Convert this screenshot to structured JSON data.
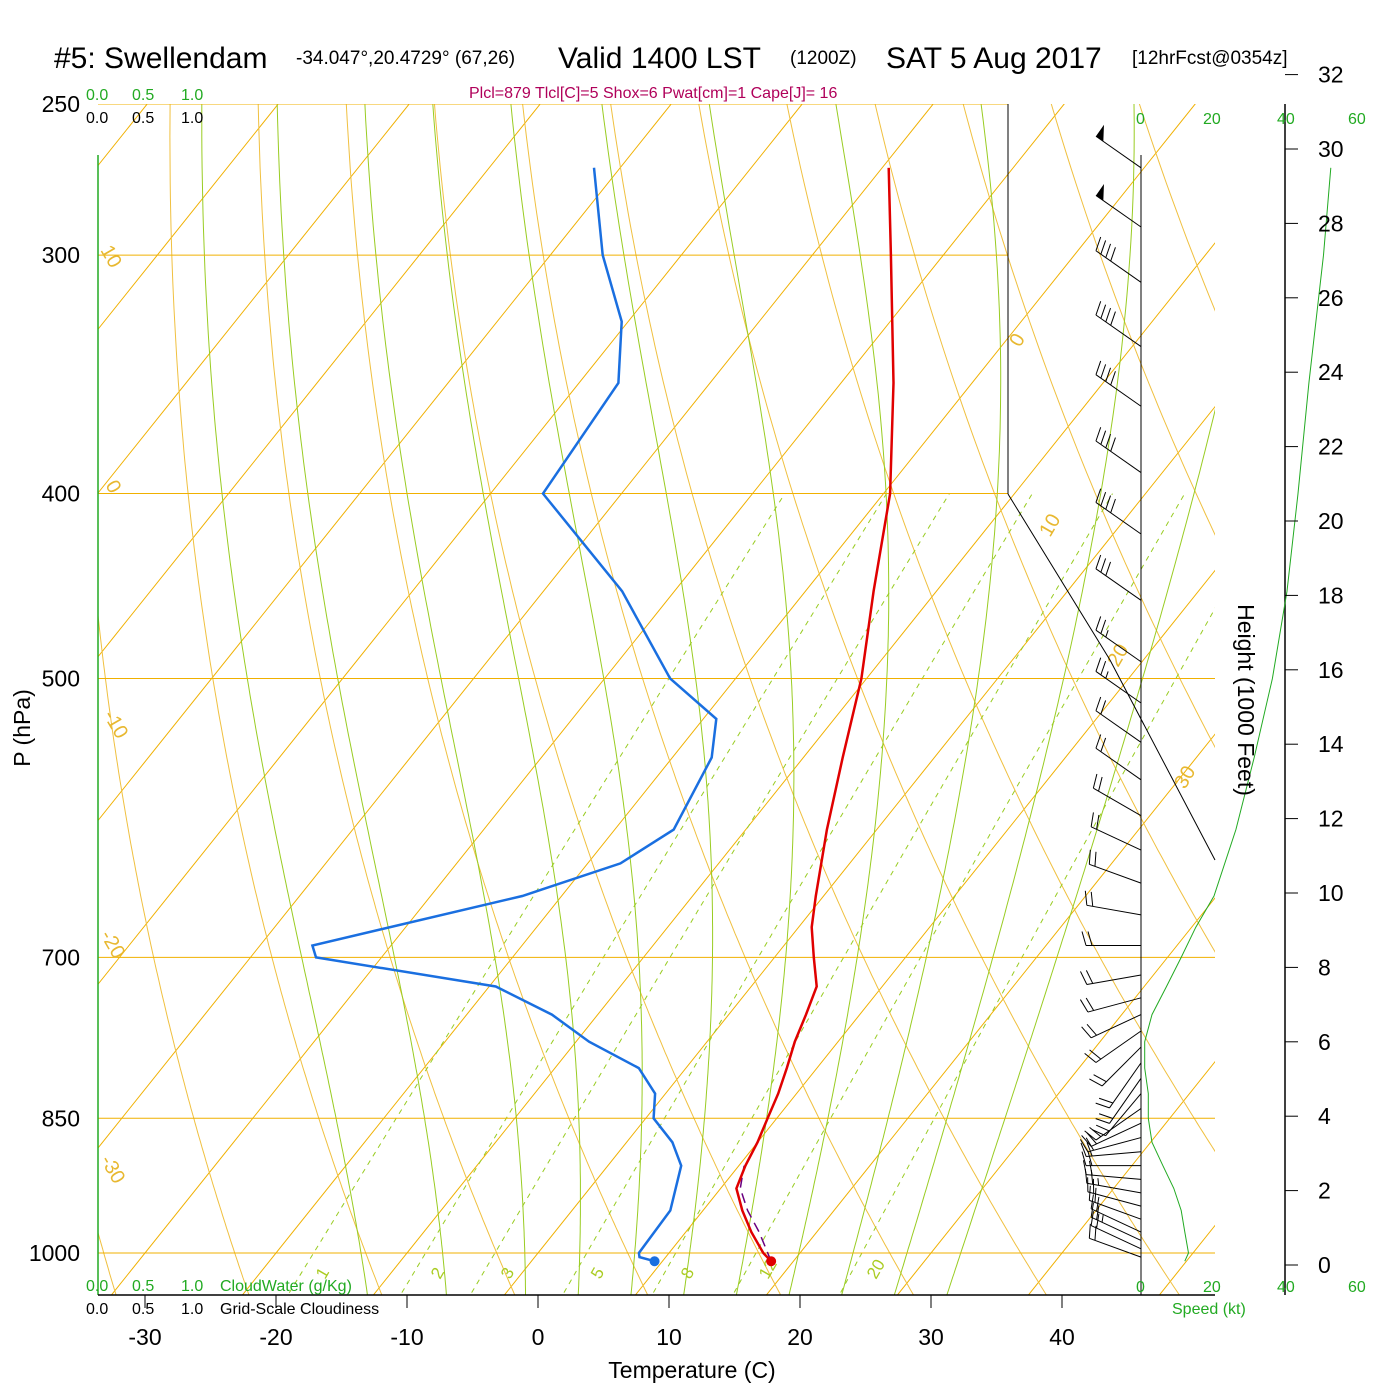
{
  "title": {
    "station": "#5: Swellendam",
    "coords": "-34.047°,20.4729° (67,26)",
    "valid": "Valid 1400 LST",
    "utc": "(1200Z)",
    "date": "SAT 5 Aug 2017",
    "forecast": "[12hrFcst@0354z]"
  },
  "indices": "Plcl=879 Tlcl[C]=5 Shox=6 Pwat[cm]=1 Cape[J]= 16",
  "colors": {
    "temperature": "#e00000",
    "dewpoint": "#1a6fe0",
    "isotherm": "#f0b000",
    "dry_adiabat": "#f0c040",
    "moist_adiabat": "#99cc22",
    "mixing_ratio": "#99cc22",
    "height_line": "#22aa22",
    "parcel": "#6a0080"
  },
  "chart_data": {
    "type": "skew-t",
    "xlabel": "Temperature (C)",
    "ylabel": "P (hPa)",
    "right_label": "Height (1000 Feet)",
    "x_ticks": [
      "-30",
      "-20",
      "-10",
      "0",
      "10",
      "20",
      "30",
      "40"
    ],
    "x_tick_values": [
      -30,
      -20,
      -10,
      0,
      10,
      20,
      30,
      40
    ],
    "p_ticks": [
      "250",
      "300",
      "400",
      "500",
      "700",
      "850",
      "1000"
    ],
    "p_tick_values": [
      250,
      300,
      400,
      500,
      700,
      850,
      1000
    ],
    "height_ticks": [
      "0",
      "2",
      "4",
      "6",
      "8",
      "10",
      "12",
      "14",
      "16",
      "18",
      "20",
      "22",
      "24",
      "26",
      "28",
      "30",
      "32"
    ],
    "height_tick_values": [
      0,
      2,
      4,
      6,
      8,
      10,
      12,
      14,
      16,
      18,
      20,
      22,
      24,
      26,
      28,
      30,
      32
    ],
    "isotherm_labels": [
      "10",
      "0",
      "-10",
      "-20",
      "-30",
      "0",
      "10",
      "20",
      "30"
    ],
    "mixing_ratio_labels": [
      "1",
      "2",
      "3",
      "5",
      "8",
      "12",
      "20"
    ],
    "cloud_scale_top": {
      "green": [
        "0.0",
        "0.5",
        "1.0"
      ],
      "black": [
        "0.0",
        "0.5",
        "1.0"
      ]
    },
    "cloud_scale_bottom": {
      "green": [
        "0.0",
        "0.5",
        "1.0"
      ],
      "black": [
        "0.0",
        "0.5",
        "1.0"
      ],
      "cloudwater_label": "CloudWater (g/Kg)",
      "cloudiness_label": "Grid-Scale Cloudiness"
    },
    "speed_ticks_top": [
      "0",
      "20",
      "40",
      "60"
    ],
    "speed_ticks_bottom": [
      "0",
      "20",
      "40",
      "60"
    ],
    "speed_label": "Speed (kt)",
    "temperature": [
      {
        "p": 1010,
        "t": 18.3
      },
      {
        "p": 1000,
        "t": 17.2
      },
      {
        "p": 975,
        "t": 15.0
      },
      {
        "p": 950,
        "t": 13.0
      },
      {
        "p": 925,
        "t": 11.2
      },
      {
        "p": 900,
        "t": 10.5
      },
      {
        "p": 875,
        "t": 10.0
      },
      {
        "p": 850,
        "t": 9.3
      },
      {
        "p": 825,
        "t": 8.6
      },
      {
        "p": 800,
        "t": 7.7
      },
      {
        "p": 775,
        "t": 6.7
      },
      {
        "p": 750,
        "t": 5.9
      },
      {
        "p": 725,
        "t": 5.0
      },
      {
        "p": 700,
        "t": 3.0
      },
      {
        "p": 675,
        "t": 1.0
      },
      {
        "p": 650,
        "t": -0.6
      },
      {
        "p": 600,
        "t": -3.8
      },
      {
        "p": 550,
        "t": -7.0
      },
      {
        "p": 500,
        "t": -10.4
      },
      {
        "p": 450,
        "t": -14.8
      },
      {
        "p": 400,
        "t": -19.5
      },
      {
        "p": 350,
        "t": -26.0
      },
      {
        "p": 300,
        "t": -34.0
      },
      {
        "p": 270,
        "t": -39.5
      }
    ],
    "dewpoint": [
      {
        "p": 1010,
        "t": 9.4
      },
      {
        "p": 1005,
        "t": 8.0
      },
      {
        "p": 1000,
        "t": 7.7
      },
      {
        "p": 950,
        "t": 7.5
      },
      {
        "p": 900,
        "t": 5.6
      },
      {
        "p": 875,
        "t": 3.5
      },
      {
        "p": 850,
        "t": 0.6
      },
      {
        "p": 825,
        "t": -0.8
      },
      {
        "p": 800,
        "t": -3.6
      },
      {
        "p": 775,
        "t": -9.0
      },
      {
        "p": 750,
        "t": -13.5
      },
      {
        "p": 725,
        "t": -19.5
      },
      {
        "p": 700,
        "t": -35.0
      },
      {
        "p": 690,
        "t": -36.0
      },
      {
        "p": 650,
        "t": -23.0
      },
      {
        "p": 625,
        "t": -17.5
      },
      {
        "p": 600,
        "t": -15.5
      },
      {
        "p": 550,
        "t": -17.0
      },
      {
        "p": 525,
        "t": -19.0
      },
      {
        "p": 500,
        "t": -25.0
      },
      {
        "p": 450,
        "t": -34.0
      },
      {
        "p": 400,
        "t": -46.0
      },
      {
        "p": 350,
        "t": -47.0
      },
      {
        "p": 325,
        "t": -50.5
      },
      {
        "p": 300,
        "t": -56.0
      },
      {
        "p": 270,
        "t": -62.0
      }
    ],
    "parcel": [
      {
        "p": 1010,
        "t": 18.3
      },
      {
        "p": 975,
        "t": 15.6
      },
      {
        "p": 950,
        "t": 13.4
      },
      {
        "p": 925,
        "t": 11.5
      },
      {
        "p": 900,
        "t": 10.4
      }
    ],
    "surface_points": {
      "temperature": 18.3,
      "dewpoint": 9.4,
      "pressure": 1010
    },
    "wind_barbs": [
      {
        "p": 1005,
        "dir": 290,
        "spd": 20
      },
      {
        "p": 995,
        "dir": 295,
        "spd": 22
      },
      {
        "p": 985,
        "dir": 295,
        "spd": 25
      },
      {
        "p": 975,
        "dir": 295,
        "spd": 22
      },
      {
        "p": 960,
        "dir": 290,
        "spd": 22
      },
      {
        "p": 945,
        "dir": 285,
        "spd": 22
      },
      {
        "p": 930,
        "dir": 280,
        "spd": 25
      },
      {
        "p": 915,
        "dir": 275,
        "spd": 22
      },
      {
        "p": 900,
        "dir": 270,
        "spd": 20
      },
      {
        "p": 885,
        "dir": 265,
        "spd": 20
      },
      {
        "p": 870,
        "dir": 255,
        "spd": 18
      },
      {
        "p": 855,
        "dir": 245,
        "spd": 18
      },
      {
        "p": 840,
        "dir": 235,
        "spd": 18
      },
      {
        "p": 825,
        "dir": 220,
        "spd": 18
      },
      {
        "p": 810,
        "dir": 215,
        "spd": 18
      },
      {
        "p": 795,
        "dir": 215,
        "spd": 18
      },
      {
        "p": 780,
        "dir": 225,
        "spd": 20
      },
      {
        "p": 765,
        "dir": 235,
        "spd": 20
      },
      {
        "p": 750,
        "dir": 245,
        "spd": 20
      },
      {
        "p": 735,
        "dir": 255,
        "spd": 20
      },
      {
        "p": 715,
        "dir": 260,
        "spd": 20
      },
      {
        "p": 690,
        "dir": 270,
        "spd": 20
      },
      {
        "p": 665,
        "dir": 280,
        "spd": 20
      },
      {
        "p": 640,
        "dir": 290,
        "spd": 20
      },
      {
        "p": 615,
        "dir": 295,
        "spd": 20
      },
      {
        "p": 590,
        "dir": 300,
        "spd": 20
      },
      {
        "p": 565,
        "dir": 305,
        "spd": 20
      },
      {
        "p": 540,
        "dir": 305,
        "spd": 20
      },
      {
        "p": 515,
        "dir": 305,
        "spd": 25
      },
      {
        "p": 490,
        "dir": 305,
        "spd": 25
      },
      {
        "p": 455,
        "dir": 305,
        "spd": 30
      },
      {
        "p": 420,
        "dir": 305,
        "spd": 40
      },
      {
        "p": 390,
        "dir": 305,
        "spd": 40
      },
      {
        "p": 360,
        "dir": 305,
        "spd": 40
      },
      {
        "p": 335,
        "dir": 305,
        "spd": 40
      },
      {
        "p": 310,
        "dir": 305,
        "spd": 40
      },
      {
        "p": 290,
        "dir": 305,
        "spd": 50
      },
      {
        "p": 270,
        "dir": 305,
        "spd": 50
      }
    ],
    "height_profile": [
      {
        "p": 1010,
        "spd": 12
      },
      {
        "p": 1000,
        "spd": 13
      },
      {
        "p": 975,
        "spd": 12
      },
      {
        "p": 950,
        "spd": 11
      },
      {
        "p": 925,
        "spd": 9
      },
      {
        "p": 900,
        "spd": 6
      },
      {
        "p": 875,
        "spd": 3
      },
      {
        "p": 850,
        "spd": 2
      },
      {
        "p": 825,
        "spd": 2
      },
      {
        "p": 800,
        "spd": 1
      },
      {
        "p": 775,
        "spd": 1
      },
      {
        "p": 750,
        "spd": 3
      },
      {
        "p": 725,
        "spd": 7
      },
      {
        "p": 700,
        "spd": 11
      },
      {
        "p": 675,
        "spd": 15
      },
      {
        "p": 650,
        "spd": 20
      },
      {
        "p": 600,
        "spd": 26
      },
      {
        "p": 550,
        "spd": 31
      },
      {
        "p": 500,
        "spd": 36
      },
      {
        "p": 450,
        "spd": 40
      },
      {
        "p": 400,
        "spd": 43
      },
      {
        "p": 350,
        "spd": 46
      },
      {
        "p": 300,
        "spd": 50
      },
      {
        "p": 270,
        "spd": 52
      }
    ]
  }
}
